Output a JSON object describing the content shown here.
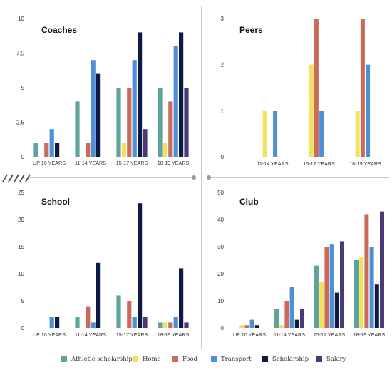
{
  "legend": [
    {
      "name": "Athletic scholarship",
      "color": "#5fa39d"
    },
    {
      "name": "Home",
      "color": "#f2e15c"
    },
    {
      "name": "Food",
      "color": "#cc6a5a"
    },
    {
      "name": "Transport",
      "color": "#4f8fd6"
    },
    {
      "name": "Scholarship",
      "color": "#0c1a48"
    },
    {
      "name": "Salary",
      "color": "#4b3a78"
    }
  ],
  "chart_data": [
    {
      "type": "bar",
      "title": "Coaches",
      "categories": [
        "UP 10 YEARS",
        "11-14 YEARS",
        "15-17 YEARS",
        "18-19 YEARS"
      ],
      "yticks": [
        "0",
        "2.5",
        "5",
        "7.5",
        "10"
      ],
      "ylim": [
        0,
        10
      ],
      "series": [
        {
          "name": "Athletic scholarship",
          "values": [
            1,
            4,
            5,
            5
          ]
        },
        {
          "name": "Home",
          "values": [
            0,
            0,
            1,
            1
          ]
        },
        {
          "name": "Food",
          "values": [
            1,
            1,
            5,
            4
          ]
        },
        {
          "name": "Transport",
          "values": [
            2,
            7,
            7,
            8
          ]
        },
        {
          "name": "Scholarship",
          "values": [
            1,
            6,
            9,
            9
          ]
        },
        {
          "name": "Salary",
          "values": [
            0,
            0,
            2,
            5
          ]
        }
      ]
    },
    {
      "type": "bar",
      "title": "Peers",
      "categories": [
        "11-14 YEARS",
        "15-17 YEARS",
        "18-19 YEARS"
      ],
      "yticks": [
        "0",
        "1",
        "2",
        "3"
      ],
      "ylim": [
        0,
        3
      ],
      "series": [
        {
          "name": "Athletic scholarship",
          "values": [
            0,
            0,
            0
          ]
        },
        {
          "name": "Home",
          "values": [
            1,
            2,
            1
          ]
        },
        {
          "name": "Food",
          "values": [
            0,
            3,
            3
          ]
        },
        {
          "name": "Transport",
          "values": [
            1,
            1,
            2
          ]
        },
        {
          "name": "Scholarship",
          "values": [
            0,
            0,
            0
          ]
        },
        {
          "name": "Salary",
          "values": [
            0,
            0,
            0
          ]
        }
      ]
    },
    {
      "type": "bar",
      "title": "School",
      "categories": [
        "UP 10 YEARS",
        "11-14 YEARS",
        "15-17 YEARS",
        "18-19 YEARS"
      ],
      "yticks": [
        "0",
        "5",
        "10",
        "15",
        "20",
        "25"
      ],
      "ylim": [
        0,
        25
      ],
      "series": [
        {
          "name": "Athletic scholarship",
          "values": [
            0,
            2,
            6,
            1
          ]
        },
        {
          "name": "Home",
          "values": [
            0,
            0,
            0,
            1
          ]
        },
        {
          "name": "Food",
          "values": [
            0,
            4,
            5,
            1
          ]
        },
        {
          "name": "Transport",
          "values": [
            2,
            1,
            2,
            2
          ]
        },
        {
          "name": "Scholarship",
          "values": [
            2,
            12,
            23,
            11
          ]
        },
        {
          "name": "Salary",
          "values": [
            0,
            0,
            2,
            1
          ]
        }
      ]
    },
    {
      "type": "bar",
      "title": "Club",
      "categories": [
        "UP 10 YEARS",
        "11-14 YEARS",
        "15-17 YEARS",
        "18-19 YEARS"
      ],
      "yticks": [
        "0",
        "10",
        "20",
        "30",
        "40",
        "50"
      ],
      "ylim": [
        0,
        50
      ],
      "series": [
        {
          "name": "Athletic scholarship",
          "values": [
            0,
            7,
            23,
            25
          ]
        },
        {
          "name": "Home",
          "values": [
            1,
            1,
            17,
            26
          ]
        },
        {
          "name": "Food",
          "values": [
            1,
            10,
            30,
            42
          ]
        },
        {
          "name": "Transport",
          "values": [
            3,
            15,
            31,
            30
          ]
        },
        {
          "name": "Scholarship",
          "values": [
            1,
            3,
            13,
            16
          ]
        },
        {
          "name": "Salary",
          "values": [
            0,
            7,
            32,
            43
          ]
        }
      ]
    }
  ]
}
